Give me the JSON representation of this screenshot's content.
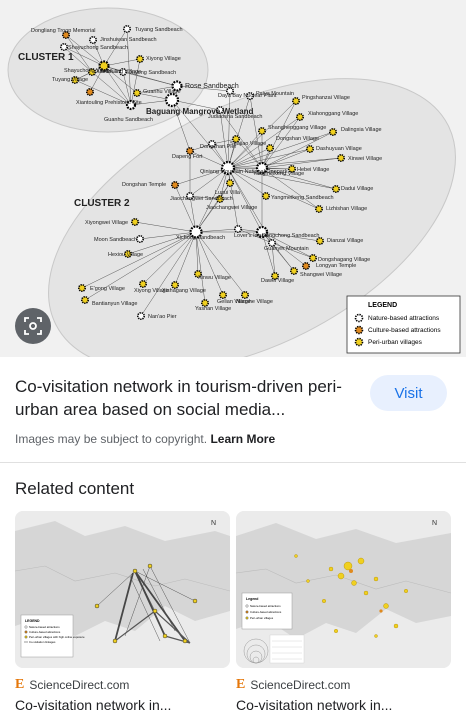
{
  "hero": {
    "clusters": {
      "c1": "CLUSTER 1",
      "c2": "CLUSTER 2"
    },
    "nodes": {
      "dongliang_troop": "Dongliang Troop Memorial",
      "tuyang_sb": "Tuyang Sandbeach",
      "jinshuiwan_sb": "Jinshuiwan Sandbeach",
      "shayuchong_sb": "Shayuchong Sandbeach",
      "xiyong_village1": "Xiyong Village",
      "shayuchong_v": "Shayuchong Village",
      "xiantouling_v": "Xiantouling Village",
      "xiyong_sb": "Xiyong Sandbeach",
      "tuyang_v": "Tuyang Village",
      "xiantouling_pre": "Xiantouling Prehistoric Site",
      "guanhu_v": "Guanhu Village",
      "guanhu_sb": "Guanhu Sandbeach",
      "rose_sb": "Rose Sandbeach",
      "baguang": "Baguang Mangrove Wetland",
      "daya_bay": "Daya Bay Nuclear Plant",
      "paiya": "Paiya Mountain",
      "pingshanzai": "Pingshanzai Village",
      "judiaosha": "Judiaosha Sandbeach",
      "xiahonggang": "Xiahonggang Village",
      "shanghenggang": "Shanghenggang Village",
      "dalingxia": "Dalingxia Village",
      "dongshan_pier": "Dongshan Pier",
      "shajiao": "Shajiao Village",
      "dongshan_v": "Dongshan Village",
      "dashuyuan": "Dashuyuan Village",
      "dapeng_fort": "Dapeng Fort",
      "qiniang": "Qiniang Mountain National Geopark",
      "yangmeikeng_v": "Yangmeikeng Village",
      "hebei": "Hebei Village",
      "xinwei_v": "Xinwei Village",
      "dongshan_temple": "Dongshan Temple",
      "dadui": "Dadui Village",
      "luzui": "Luzui Villa",
      "jiaochangwei_sb": "Jiaochangwei Sandbeach",
      "jiaochangwei_v": "Jiaochangwei Village",
      "yangmeikeng_sb": "Yangmeikeng Sandbeach",
      "lizhishan": "Lizhishan Village",
      "xiyongwei": "Xiyongwei Village",
      "lovers_island": "Lover's Island",
      "dongchong_sb": "Dongchong Sandbeach",
      "moon_sb": "Moon Sandbeach",
      "xichong_sb": "Xichong Sandbeach",
      "dianzai": "Dianzai Village",
      "guanyin": "Guanyin Mountain",
      "hexiou": "Hexiou Village",
      "dongshagang": "Dongshagang Village",
      "longyan": "Longyan Temple",
      "shangwei": "Shangwei Village",
      "dawei": "Dawei Village",
      "xinwu": "Xinwu Village",
      "egong": "E'gong Village",
      "xiyong_v2": "Xiyong Village",
      "xishagang": "Xishagang Village",
      "bantianyun": "Bantianyun Village",
      "gelian": "Gelian Village",
      "nanshe": "Nanshe Village",
      "yashan": "Yashan Village",
      "nanao_pier": "Nan'ao Pier"
    },
    "legend": {
      "title": "LEGEND",
      "nature": "Nature-based attractions",
      "culture": "Culture-based attractions",
      "village": "Peri-urban villages"
    },
    "colors": {
      "nature": "#ffffff",
      "culture": "#e08a1e",
      "village": "#f0d020"
    }
  },
  "lens_icon": "lens-icon",
  "result": {
    "title": "Co-visitation network in tourism-driven peri-urban area based on social media...",
    "visit_label": "Visit",
    "copyright": "Images may be subject to copyright.",
    "learn_more": "Learn More"
  },
  "related": {
    "heading": "Related content",
    "cards": [
      {
        "source": "ScienceDirect.com",
        "title": "Co-visitation network in...",
        "thumb_legend": {
          "title": "LEGEND",
          "items": [
            "Nature-based attractions",
            "Culture-based attractions",
            "Peri-urban villages with high online exposure",
            "Co-visitation linkages"
          ]
        }
      },
      {
        "source": "ScienceDirect.com",
        "title": "Co-visitation network in...",
        "thumb_legend": {
          "title": "Legend",
          "items": [
            "Nature-based attractions",
            "Culture-based attractions",
            "Peri-urban villages"
          ]
        }
      }
    ]
  }
}
